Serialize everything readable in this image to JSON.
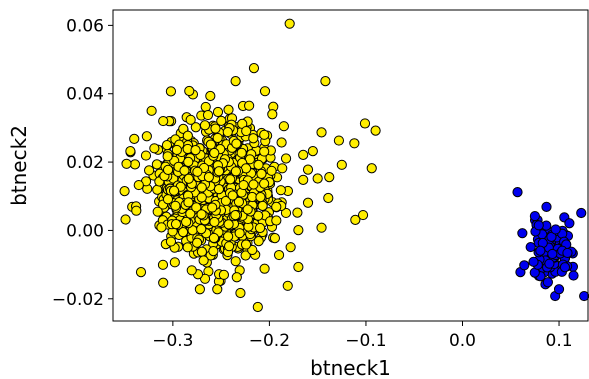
{
  "chart_data": {
    "type": "scatter",
    "title": "",
    "xlabel": "btneck1",
    "ylabel": "btneck2",
    "xlim": [
      -0.362,
      0.13
    ],
    "ylim": [
      -0.0265,
      0.0645
    ],
    "xticks": [
      -0.3,
      -0.2,
      -0.1,
      0.0,
      0.1
    ],
    "xtick_labels": [
      "−0.3",
      "−0.2",
      "−0.1",
      "0.0",
      "0.1"
    ],
    "yticks": [
      -0.02,
      0.0,
      0.02,
      0.04,
      0.06
    ],
    "ytick_labels": [
      "−0.02",
      "0.00",
      "0.02",
      "0.04",
      "0.06"
    ],
    "grid": false,
    "legend": "none",
    "series": [
      {
        "color": "#ffee00",
        "edgecolor": "#000000",
        "cluster": {
          "n": 1300,
          "x_center": -0.255,
          "x_spread": 0.028,
          "x_min": -0.345,
          "x_max": -0.18,
          "y_center": 0.012,
          "y_spread": 0.0085,
          "y_min": -0.017,
          "y_max": 0.043,
          "seed": 7
        },
        "values": [
          [
            -0.179,
            0.0605
          ],
          [
            -0.216,
            0.0475
          ],
          [
            -0.142,
            0.0437
          ],
          [
            -0.302,
            0.0407
          ],
          [
            -0.283,
            0.0408
          ],
          [
            -0.235,
            0.0437
          ],
          [
            -0.101,
            0.0313
          ],
          [
            -0.09,
            0.0292
          ],
          [
            -0.128,
            0.0263
          ],
          [
            -0.112,
            0.0255
          ],
          [
            -0.146,
            0.0287
          ],
          [
            -0.155,
            0.0232
          ],
          [
            -0.165,
            0.0221
          ],
          [
            -0.094,
            0.0182
          ],
          [
            -0.125,
            0.0192
          ],
          [
            -0.138,
            0.0156
          ],
          [
            -0.15,
            0.0152
          ],
          [
            -0.139,
            0.0095
          ],
          [
            -0.103,
            0.0045
          ],
          [
            -0.111,
            0.0031
          ],
          [
            -0.16,
            0.0081
          ],
          [
            -0.171,
            0.0052
          ],
          [
            -0.146,
            0.0008
          ],
          [
            -0.17,
            0.0001
          ],
          [
            -0.178,
            -0.0049
          ],
          [
            -0.19,
            -0.0072
          ],
          [
            -0.17,
            -0.0107
          ],
          [
            -0.205,
            -0.0112
          ],
          [
            -0.212,
            -0.0224
          ],
          [
            -0.23,
            -0.0183
          ],
          [
            -0.254,
            -0.0172
          ],
          [
            -0.272,
            -0.0172
          ],
          [
            -0.31,
            -0.0153
          ],
          [
            -0.333,
            -0.0122
          ],
          [
            -0.349,
            0.0032
          ],
          [
            -0.348,
            0.0195
          ],
          [
            -0.344,
            0.0232
          ],
          [
            -0.34,
            0.0268
          ],
          [
            -0.221,
            0.0365
          ],
          [
            -0.181,
            -0.0162
          ],
          [
            -0.196,
            0.0362
          ],
          [
            -0.16,
            0.0178
          ],
          [
            -0.165,
            0.0148
          ],
          [
            -0.35,
            0.0115
          ],
          [
            -0.322,
            0.035
          ],
          [
            -0.31,
            0.032
          ],
          [
            -0.197,
            0.034
          ],
          [
            -0.185,
            0.0305
          ]
        ]
      },
      {
        "color": "#0000ee",
        "edgecolor": "#000000",
        "cluster": {
          "n": 110,
          "x_center": 0.092,
          "x_spread": 0.011,
          "x_min": 0.07,
          "x_max": 0.115,
          "y_center": -0.0065,
          "y_spread": 0.0042,
          "y_min": -0.017,
          "y_max": 0.004,
          "seed": 11
        },
        "values": [
          [
            0.057,
            0.0112
          ],
          [
            0.123,
            0.0051
          ],
          [
            0.075,
            0.0042
          ],
          [
            0.087,
            0.0069
          ],
          [
            0.06,
            -0.0122
          ],
          [
            0.126,
            -0.0192
          ],
          [
            0.096,
            -0.0192
          ],
          [
            0.1,
            -0.0172
          ],
          [
            0.115,
            -0.0132
          ],
          [
            0.064,
            -0.0102
          ],
          [
            0.079,
            0.0015
          ],
          [
            0.062,
            -0.0008
          ]
        ]
      }
    ]
  }
}
